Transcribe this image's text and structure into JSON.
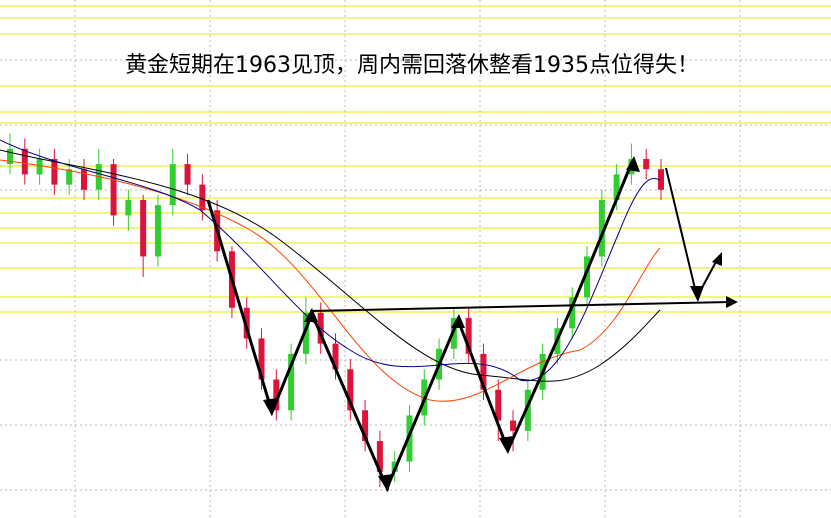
{
  "chart_data": {
    "type": "candlestick",
    "title": "黄金短期在1963见顶，周内需回落休整看1935点位得失！",
    "ylim": [
      1893,
      1994
    ],
    "up_color": "#32cd32",
    "down_color": "#dc143c",
    "open": [
      1962,
      1965,
      1960,
      1963,
      1958,
      1961,
      1957,
      1962,
      1952,
      1955,
      1944,
      1954,
      1962,
      1958,
      1953,
      1945,
      1934,
      1928,
      1920,
      1914,
      1925,
      1933,
      1927,
      1922,
      1914,
      1908,
      1902,
      1904,
      1913,
      1920,
      1926,
      1932,
      1925,
      1918,
      1912,
      1910,
      1918,
      1925,
      1930,
      1936,
      1944,
      1955,
      1960,
      1963,
      1961
    ],
    "close": [
      1965,
      1960,
      1963,
      1958,
      1961,
      1957,
      1962,
      1952,
      1955,
      1944,
      1954,
      1962,
      1958,
      1953,
      1945,
      1934,
      1928,
      1920,
      1914,
      1925,
      1933,
      1927,
      1922,
      1914,
      1908,
      1902,
      1904,
      1913,
      1920,
      1926,
      1932,
      1925,
      1918,
      1912,
      1910,
      1918,
      1925,
      1930,
      1936,
      1944,
      1955,
      1960,
      1963,
      1961,
      1957
    ],
    "high": [
      1968,
      1967,
      1965,
      1965,
      1963,
      1963,
      1965,
      1963,
      1957,
      1956,
      1956,
      1965,
      1964,
      1960,
      1955,
      1946,
      1936,
      1930,
      1922,
      1927,
      1936,
      1935,
      1929,
      1924,
      1916,
      1910,
      1906,
      1915,
      1922,
      1928,
      1934,
      1934,
      1927,
      1920,
      1914,
      1920,
      1927,
      1932,
      1938,
      1946,
      1957,
      1962,
      1966,
      1965,
      1963
    ],
    "low": [
      1960,
      1958,
      1958,
      1956,
      1956,
      1955,
      1955,
      1950,
      1949,
      1940,
      1942,
      1952,
      1956,
      1951,
      1943,
      1932,
      1926,
      1918,
      1912,
      1912,
      1923,
      1925,
      1920,
      1912,
      1906,
      1899,
      1900,
      1902,
      1911,
      1918,
      1924,
      1923,
      1916,
      1908,
      1906,
      1908,
      1916,
      1923,
      1928,
      1934,
      1942,
      1953,
      1958,
      1959,
      1955
    ]
  }
}
